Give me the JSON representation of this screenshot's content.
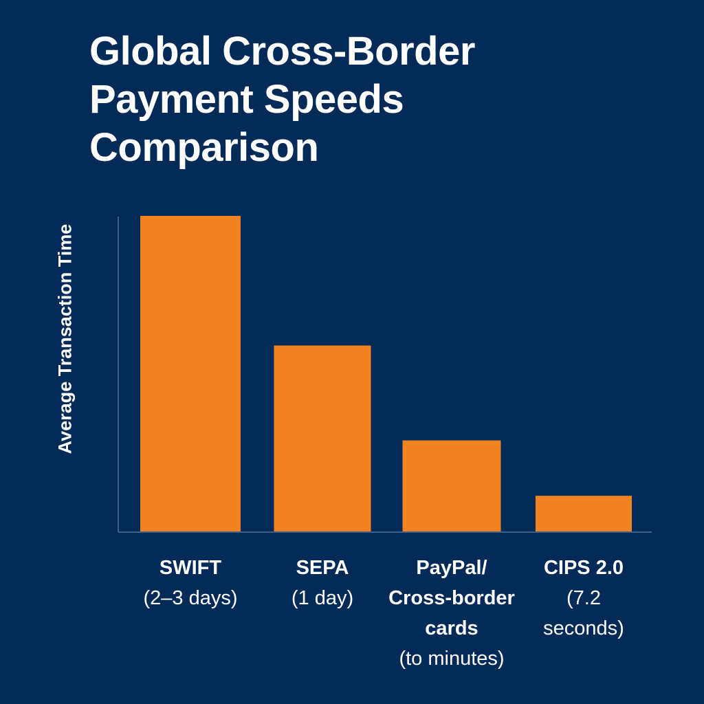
{
  "chart_data": {
    "type": "bar",
    "title": "Global Cross-Border\nPayment Speeds\nComparison",
    "ylabel": "Average Transaction Time",
    "xlabel": "",
    "categories": [
      {
        "name": "SWIFT",
        "detail": "(2–3 days)"
      },
      {
        "name": "SEPA",
        "detail": "(1 day)"
      },
      {
        "name": "PayPal/\nCross-border\ncards",
        "detail": "(to minutes)"
      },
      {
        "name": "CIPS 2.0",
        "detail": "(7.2\nseconds)"
      }
    ],
    "values": [
      100,
      59,
      29,
      11.5
    ],
    "ylim": [
      0,
      100
    ],
    "grid": false,
    "bar_color": "#F28322",
    "axis_color": "#3E5F8A",
    "background": "#042A57"
  }
}
